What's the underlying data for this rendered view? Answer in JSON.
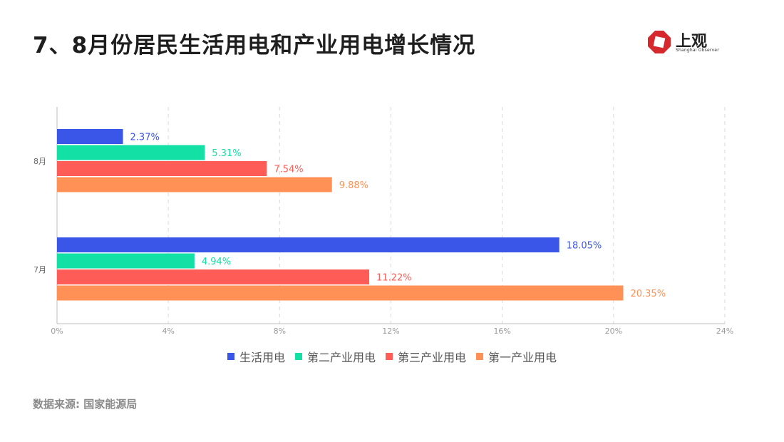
{
  "title": "7、8月份居民生活用电和产业用电增长情况",
  "logo": {
    "name": "上观",
    "subtitle": "Shanghai Observer",
    "color": "#d6292e"
  },
  "source": "数据来源: 国家能源局",
  "chart_data": {
    "type": "bar",
    "orientation": "horizontal",
    "categories": [
      "8月",
      "7月"
    ],
    "series": [
      {
        "name": "生活用电",
        "color": "#3a56e8",
        "values": [
          2.37,
          18.05
        ],
        "labels": [
          "2.37%",
          "18.05%"
        ]
      },
      {
        "name": "第二产业用电",
        "color": "#12e0a4",
        "values": [
          5.31,
          4.94
        ],
        "labels": [
          "5.31%",
          "4.94%"
        ]
      },
      {
        "name": "第三产业用电",
        "color": "#fe5d57",
        "values": [
          7.54,
          11.22
        ],
        "labels": [
          "7.54%",
          "11.22%"
        ]
      },
      {
        "name": "第一产业用电",
        "color": "#ff9156",
        "values": [
          9.88,
          20.35
        ],
        "labels": [
          "9.88%",
          "20.35%"
        ]
      }
    ],
    "xlim": [
      0,
      24
    ],
    "x_ticks": [
      "0%",
      "4%",
      "8%",
      "12%",
      "16%",
      "20%",
      "24%"
    ],
    "grid": true,
    "legend_position": "bottom"
  }
}
